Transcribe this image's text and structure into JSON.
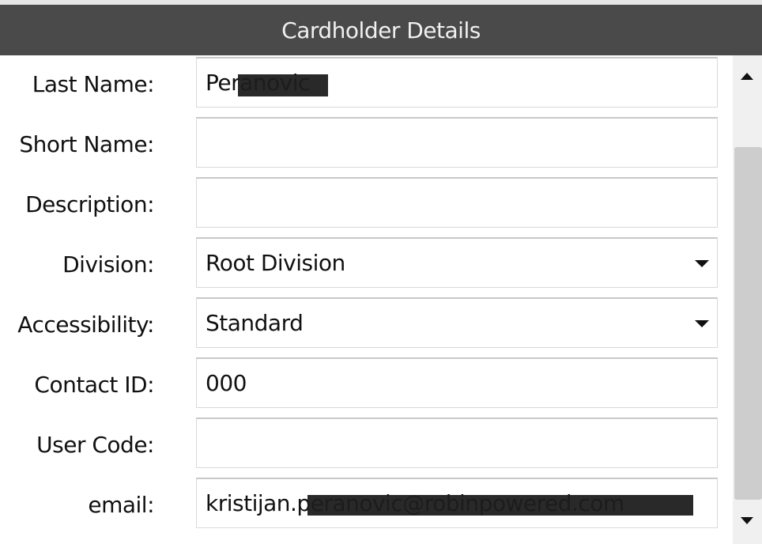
{
  "header": {
    "title": "Cardholder Details"
  },
  "fields": [
    {
      "label": "Last Name:",
      "value": "Peranovic",
      "type": "text",
      "redacted": true
    },
    {
      "label": "Short Name:",
      "value": "",
      "type": "text"
    },
    {
      "label": "Description:",
      "value": "",
      "type": "text"
    },
    {
      "label": "Division:",
      "value": "Root Division",
      "type": "select"
    },
    {
      "label": "Accessibility:",
      "value": "Standard",
      "type": "select"
    },
    {
      "label": "Contact ID:",
      "value": "000",
      "type": "text"
    },
    {
      "label": "User Code:",
      "value": "",
      "type": "text"
    },
    {
      "label": "email:",
      "value": "kristijan.peranovic@robinpowered.com",
      "type": "text",
      "redacted": true
    }
  ]
}
